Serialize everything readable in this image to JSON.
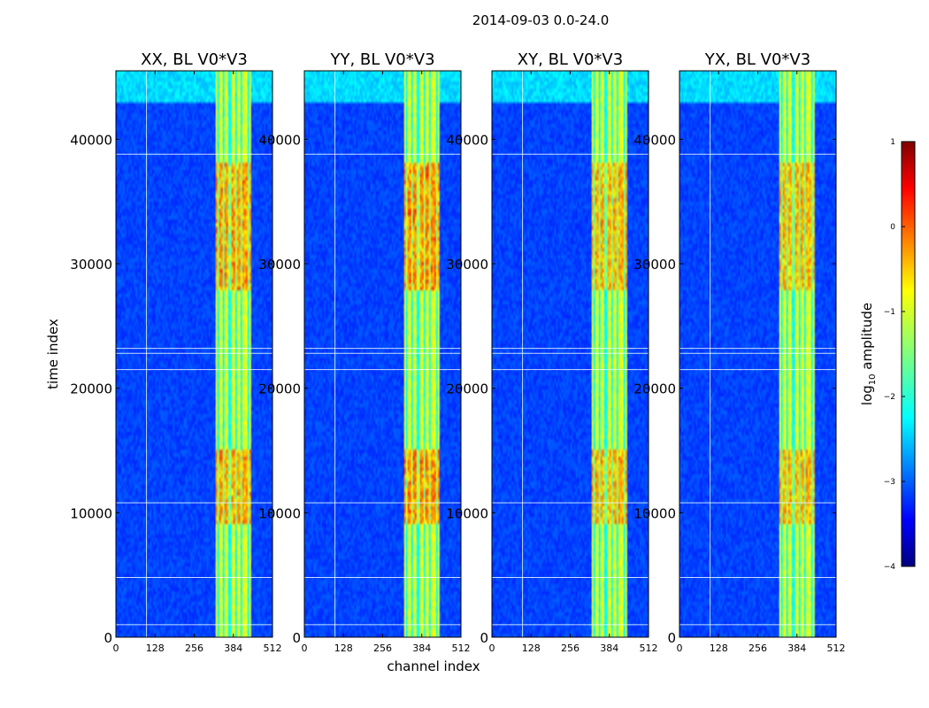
{
  "chart_data": {
    "type": "heatmap",
    "suptitle": "2014-09-03 0.0-24.0",
    "xlabel": "channel index",
    "ylabel": "time index",
    "xlim": [
      0,
      512
    ],
    "ylim": [
      0,
      45500
    ],
    "x_ticks": [
      0,
      128,
      256,
      384,
      512
    ],
    "y_ticks": [
      0,
      10000,
      20000,
      30000,
      40000
    ],
    "colorbar": {
      "label": "log10 amplitude",
      "label_main": "log",
      "label_sub": "10",
      "label_rest": " amplitude",
      "range": [
        -4,
        1
      ],
      "ticks": [
        1,
        0,
        -1,
        -2,
        -3,
        -4
      ],
      "tick_labels": [
        "1",
        "0",
        "−1",
        "−2",
        "−3",
        "−4"
      ],
      "colormap": "jet"
    },
    "panels": [
      {
        "title": "XX, BL V0*V3",
        "polarization": "XX",
        "intensity": 1.0
      },
      {
        "title": "YY, BL V0*V3",
        "polarization": "YY",
        "intensity": 1.15
      },
      {
        "title": "XY, BL V0*V3",
        "polarization": "XY",
        "intensity": 0.85
      },
      {
        "title": "YX, BL V0*V3",
        "polarization": "YX",
        "intensity": 0.85
      }
    ],
    "features": {
      "hot_channel_band": [
        325,
        440
      ],
      "hot_band_stripes": [
        333,
        352,
        372,
        392,
        412,
        432
      ],
      "hot_time_segments": [
        [
          28000,
          38000
        ],
        [
          9000,
          15000
        ]
      ],
      "bright_rows": [
        1000,
        4800,
        10800,
        21500,
        22800,
        23200,
        38800
      ],
      "noisy_time_block": [
        43000,
        45500
      ],
      "noisy_block_channels": [
        0,
        512
      ],
      "vertical_line_channel": 100
    }
  }
}
